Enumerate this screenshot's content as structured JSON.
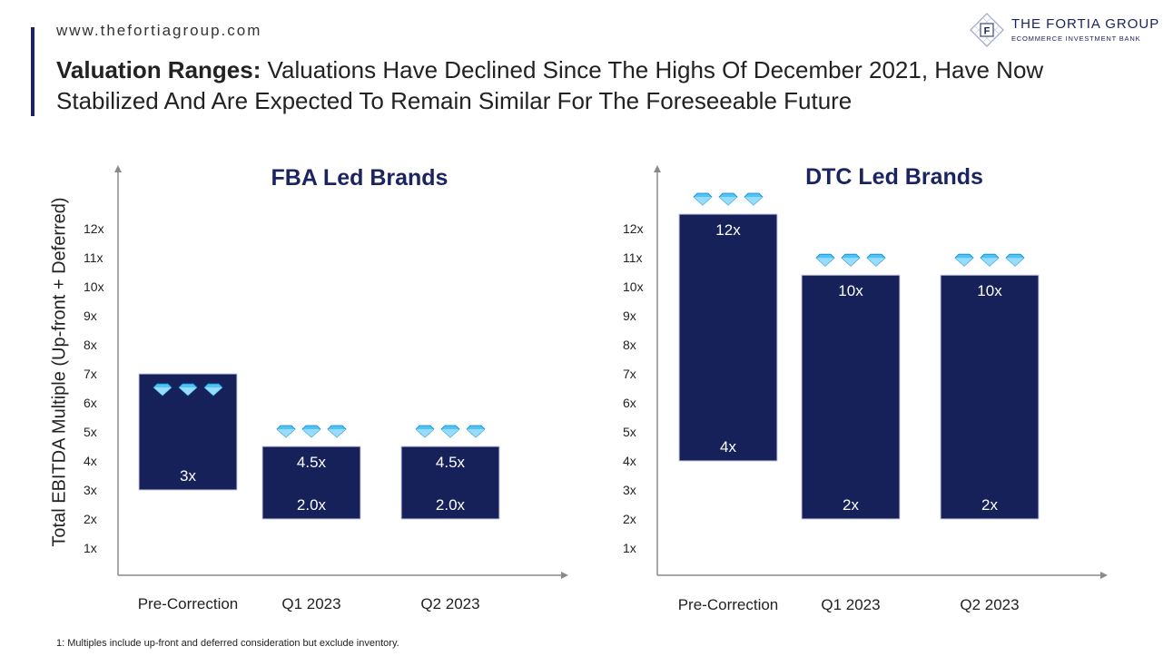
{
  "header": {
    "site_url": "www.thefortiagroup.com",
    "title_lead": "Valuation Ranges:",
    "title_rest": " Valuations Have Declined Since The Highs Of December 2021, Have Now Stabilized And Are Expected To Remain Similar For The Foreseeable Future"
  },
  "logo": {
    "mark_letter": "F",
    "name": "THE FORTIA GROUP",
    "tagline": "ECOMMERCE INVESTMENT BANK",
    "icon": "diamond-lattice-logo"
  },
  "y_axis_title": "Total EBITDA Multiple (Up-front + Deferred)",
  "footnote": "1: Multiples include up-front and deferred consideration but exclude inventory.",
  "colors": {
    "bar": "#16215a",
    "axis": "#8a8a8a",
    "title": "#1b2460",
    "gem": "#4fc3f7"
  },
  "chart_data": [
    {
      "type": "bar",
      "title": "FBA Led Brands",
      "ylabel": "Total EBITDA Multiple (Up-front + Deferred)",
      "yticks": [
        "1x",
        "2x",
        "3x",
        "4x",
        "5x",
        "6x",
        "7x",
        "8x",
        "9x",
        "10x",
        "11x",
        "12x"
      ],
      "categories": [
        "Pre-Correction",
        "Q1 2023",
        "Q2 2023"
      ],
      "ranges": [
        {
          "low": 3,
          "high": 7,
          "top_label": "",
          "bottom_label": "3x",
          "gems_inside": true
        },
        {
          "low": 2,
          "high": 4.5,
          "top_label": "4.5x",
          "bottom_label": "2.0x",
          "gems_inside": false
        },
        {
          "low": 2,
          "high": 4.5,
          "top_label": "4.5x",
          "bottom_label": "2.0x",
          "gems_inside": false
        }
      ],
      "icon": "diamond-icon"
    },
    {
      "type": "bar",
      "title": "DTC Led Brands",
      "yticks": [
        "1x",
        "2x",
        "3x",
        "4x",
        "5x",
        "6x",
        "7x",
        "8x",
        "9x",
        "10x",
        "11x",
        "12x"
      ],
      "categories": [
        "Pre-Correction",
        "Q1 2023",
        "Q2 2023"
      ],
      "ranges": [
        {
          "low": 4,
          "high": 12.5,
          "top_label": "12x",
          "bottom_label": "4x",
          "gems_inside": false
        },
        {
          "low": 2,
          "high": 10.4,
          "top_label": "10x",
          "bottom_label": "2x",
          "gems_inside": false
        },
        {
          "low": 2,
          "high": 10.4,
          "top_label": "10x",
          "bottom_label": "2x",
          "gems_inside": false
        }
      ],
      "icon": "diamond-icon"
    }
  ]
}
